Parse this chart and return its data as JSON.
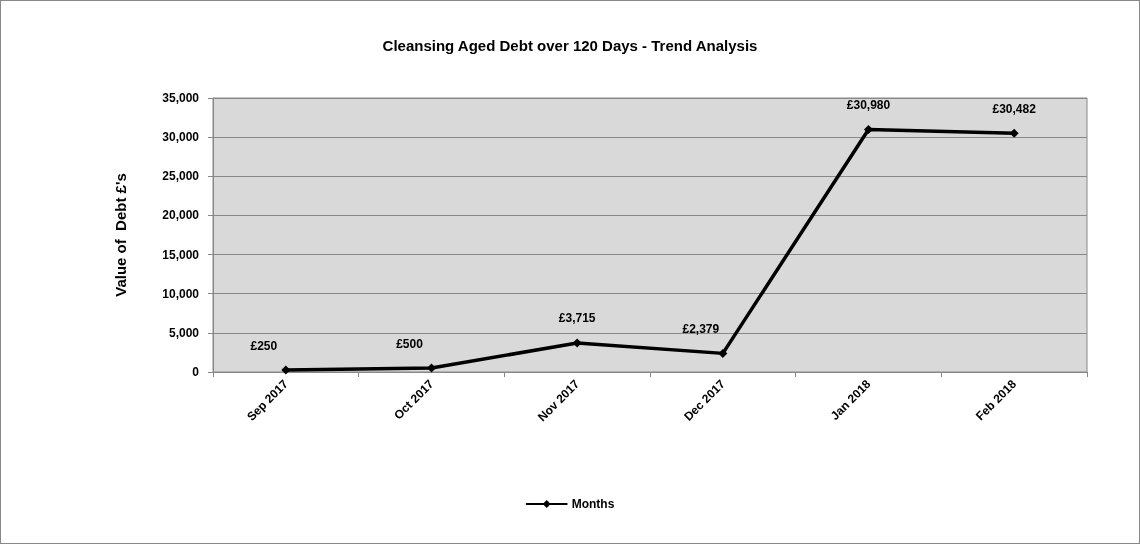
{
  "chart_data": {
    "type": "line",
    "title": "Cleansing Aged Debt over 120 Days - Trend Analysis",
    "ylabel": "Value of  Debt £'s",
    "categories": [
      "Sep 2017",
      "Oct 2017",
      "Nov 2017",
      "Dec 2017",
      "Jan 2018",
      "Feb 2018"
    ],
    "series": [
      {
        "name": "Months",
        "color": "#000000",
        "values": [
          250,
          500,
          3715,
          2379,
          30980,
          30482
        ],
        "value_labels": [
          "£250",
          "£500",
          "£3,715",
          "£2,379",
          "£30,980",
          "£30,482"
        ]
      }
    ],
    "ylim": [
      0,
      35000
    ],
    "yticks": [
      {
        "value": 0,
        "label": "0"
      },
      {
        "value": 5000,
        "label": "5,000"
      },
      {
        "value": 10000,
        "label": "10,000"
      },
      {
        "value": 15000,
        "label": "15,000"
      },
      {
        "value": 20000,
        "label": "20,000"
      },
      {
        "value": 25000,
        "label": "25,000"
      },
      {
        "value": 30000,
        "label": "30,000"
      },
      {
        "value": 35000,
        "label": "35,000"
      }
    ],
    "grid": "y",
    "legend": "bottom",
    "marker": "diamond",
    "line_style": "solid"
  }
}
